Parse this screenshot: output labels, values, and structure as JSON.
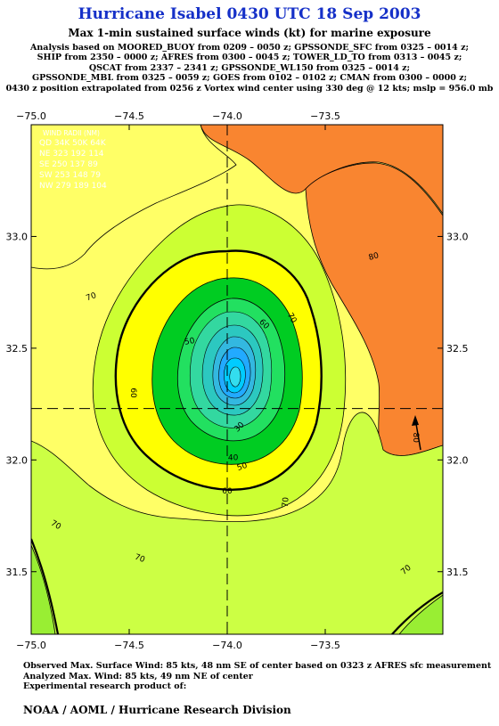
{
  "header": {
    "title": "Hurricane Isabel 0430 UTC 18 Sep 2003",
    "subtitle": "Max 1-min sustained surface winds (kt) for marine exposure",
    "analysis_lines": [
      "Analysis based on MOORED_BUOY from 0209 – 0050 z; GPSSONDE_SFC from 0325 – 0014 z;",
      "SHIP from 2350 – 0000 z; AFRES from 0300 – 0045 z; TOWER_LD_TO from 0313 – 0045 z;",
      "QSCAT from 2337 – 2341 z; GPSSONDE_WL150 from 0325 – 0014 z;",
      "GPSSONDE_MBL from 0325 – 0059 z; GOES from 0102 – 0102 z; CMAN from 0300 – 0000 z;",
      "0430 z position extrapolated from 0256 z Vortex wind center using 330 deg @ 12 kts; mslp = 956.0 mb"
    ]
  },
  "map": {
    "x_ticks": [
      "−75.0",
      "−74.5",
      "−74.0",
      "−73.5"
    ],
    "y_ticks": [
      "33.0",
      "32.5",
      "32.0",
      "31.5"
    ],
    "x_tick_values": [
      -75.0,
      -74.5,
      -74.0,
      -73.5
    ],
    "y_tick_values": [
      33.0,
      32.5,
      32.0,
      31.5
    ],
    "center": {
      "lon": -74.0,
      "lat": 32.23
    },
    "contour_labels": [
      {
        "text": "80",
        "lon": -73.25,
        "lat": 32.9,
        "rot": -15
      },
      {
        "text": "80",
        "lon": -73.05,
        "lat": 32.1,
        "rot": 90
      },
      {
        "text": "70",
        "lon": -74.69,
        "lat": 32.72,
        "rot": -20
      },
      {
        "text": "70",
        "lon": -73.68,
        "lat": 32.63,
        "rot": 60
      },
      {
        "text": "70",
        "lon": -74.88,
        "lat": 31.7,
        "rot": 30
      },
      {
        "text": "70",
        "lon": -73.69,
        "lat": 31.81,
        "rot": -85
      },
      {
        "text": "70",
        "lon": -74.45,
        "lat": 31.55,
        "rot": 20
      },
      {
        "text": "70",
        "lon": -73.08,
        "lat": 31.5,
        "rot": -40
      },
      {
        "text": "60",
        "lon": -73.82,
        "lat": 32.6,
        "rot": 45
      },
      {
        "text": "60",
        "lon": -74.49,
        "lat": 32.3,
        "rot": 90
      },
      {
        "text": "60",
        "lon": -74.0,
        "lat": 31.85,
        "rot": 0
      },
      {
        "text": "50",
        "lon": -74.19,
        "lat": 32.52,
        "rot": -10
      },
      {
        "text": "50",
        "lon": -73.92,
        "lat": 31.96,
        "rot": -20
      },
      {
        "text": "40",
        "lon": -73.97,
        "lat": 32.0,
        "rot": 0
      },
      {
        "text": "30",
        "lon": -73.93,
        "lat": 32.14,
        "rot": -45
      }
    ],
    "wind_radii_box": [
      "WIND RADII (NM)",
      "QD 34K 50K 64K",
      "NE 323 192 114",
      "SE 250 137 89",
      "SW 253 148 79",
      "NW 279 189 104"
    ]
  },
  "footer": {
    "lines": [
      "Observed Max. Surface Wind: 85 kts, 48 nm SE of center based on 0323 z AFRES sfc measurement",
      "Analyzed Max. Wind: 85 kts, 49 nm NE of center",
      "Experimental research product of:"
    ],
    "organization": "NOAA / AOML / Hurricane Research Division"
  }
}
